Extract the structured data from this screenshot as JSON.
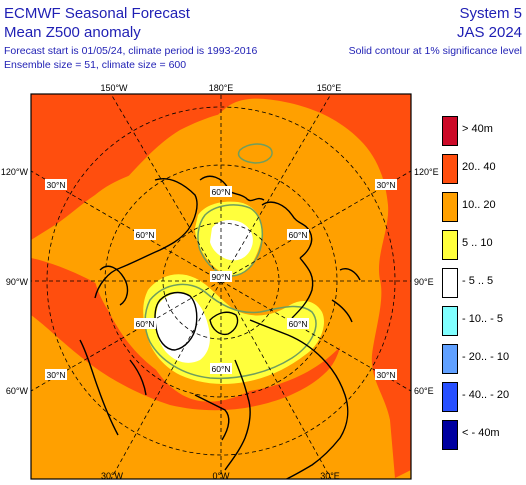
{
  "header": {
    "title": "ECMWF Seasonal Forecast",
    "subtitle": "Mean Z500 anomaly",
    "forecast_info": "Forecast start is 01/05/24, climate period is 1993-2016",
    "ensemble_info": "Ensemble size = 51, climate size = 600",
    "system": "System 5",
    "season": "JAS 2024",
    "significance_note": "Solid contour at 1% significance level"
  },
  "map_labels": {
    "top_150w": "150°W",
    "top_180": "180°E",
    "top_150e": "150°E",
    "left_120w": "120°W",
    "left_90w": "90°W",
    "left_60w": "60°W",
    "right_120e": "120°E",
    "right_90e": "90°E",
    "right_60e": "60°E",
    "bottom_30w": "30°W",
    "bottom_0": "0°W",
    "bottom_30e": "30°E",
    "lat_30n_ul": "30°N",
    "lat_30n_ur": "30°N",
    "lat_30n_ll": "30°N",
    "lat_30n_lr": "30°N",
    "lat_60n_top": "60°N",
    "lat_60n_l": "60°N",
    "lat_60n_r": "60°N",
    "lat_60n_bl": "60°N",
    "lat_60n_br": "60°N",
    "lat_60n_b": "60°N",
    "lat_90n": "90°N"
  },
  "legend": [
    {
      "label": "> 40m",
      "color": "#cc0a28"
    },
    {
      "label": "20.. 40",
      "color": "#ff4e0e"
    },
    {
      "label": "10.. 20",
      "color": "#ffa000"
    },
    {
      "label": "5 .. 10",
      "color": "#ffff3c"
    },
    {
      "label": "- 5 .. 5",
      "color": "#ffffff"
    },
    {
      "label": "- 10.. - 5",
      "color": "#80ffff"
    },
    {
      "label": "- 20.. - 10",
      "color": "#60a0ff"
    },
    {
      "label": "- 40.. - 20",
      "color": "#2850ff"
    },
    {
      "label": "< - 40m",
      "color": "#0000a0"
    }
  ],
  "colors": {
    "strong_pos": "#ff4e0e",
    "mod_pos": "#ffa000",
    "weak_pos": "#ffff3c",
    "neutral": "#ffffff",
    "contour": "#6f9e5e",
    "title_blue": "#1f1fb4"
  }
}
